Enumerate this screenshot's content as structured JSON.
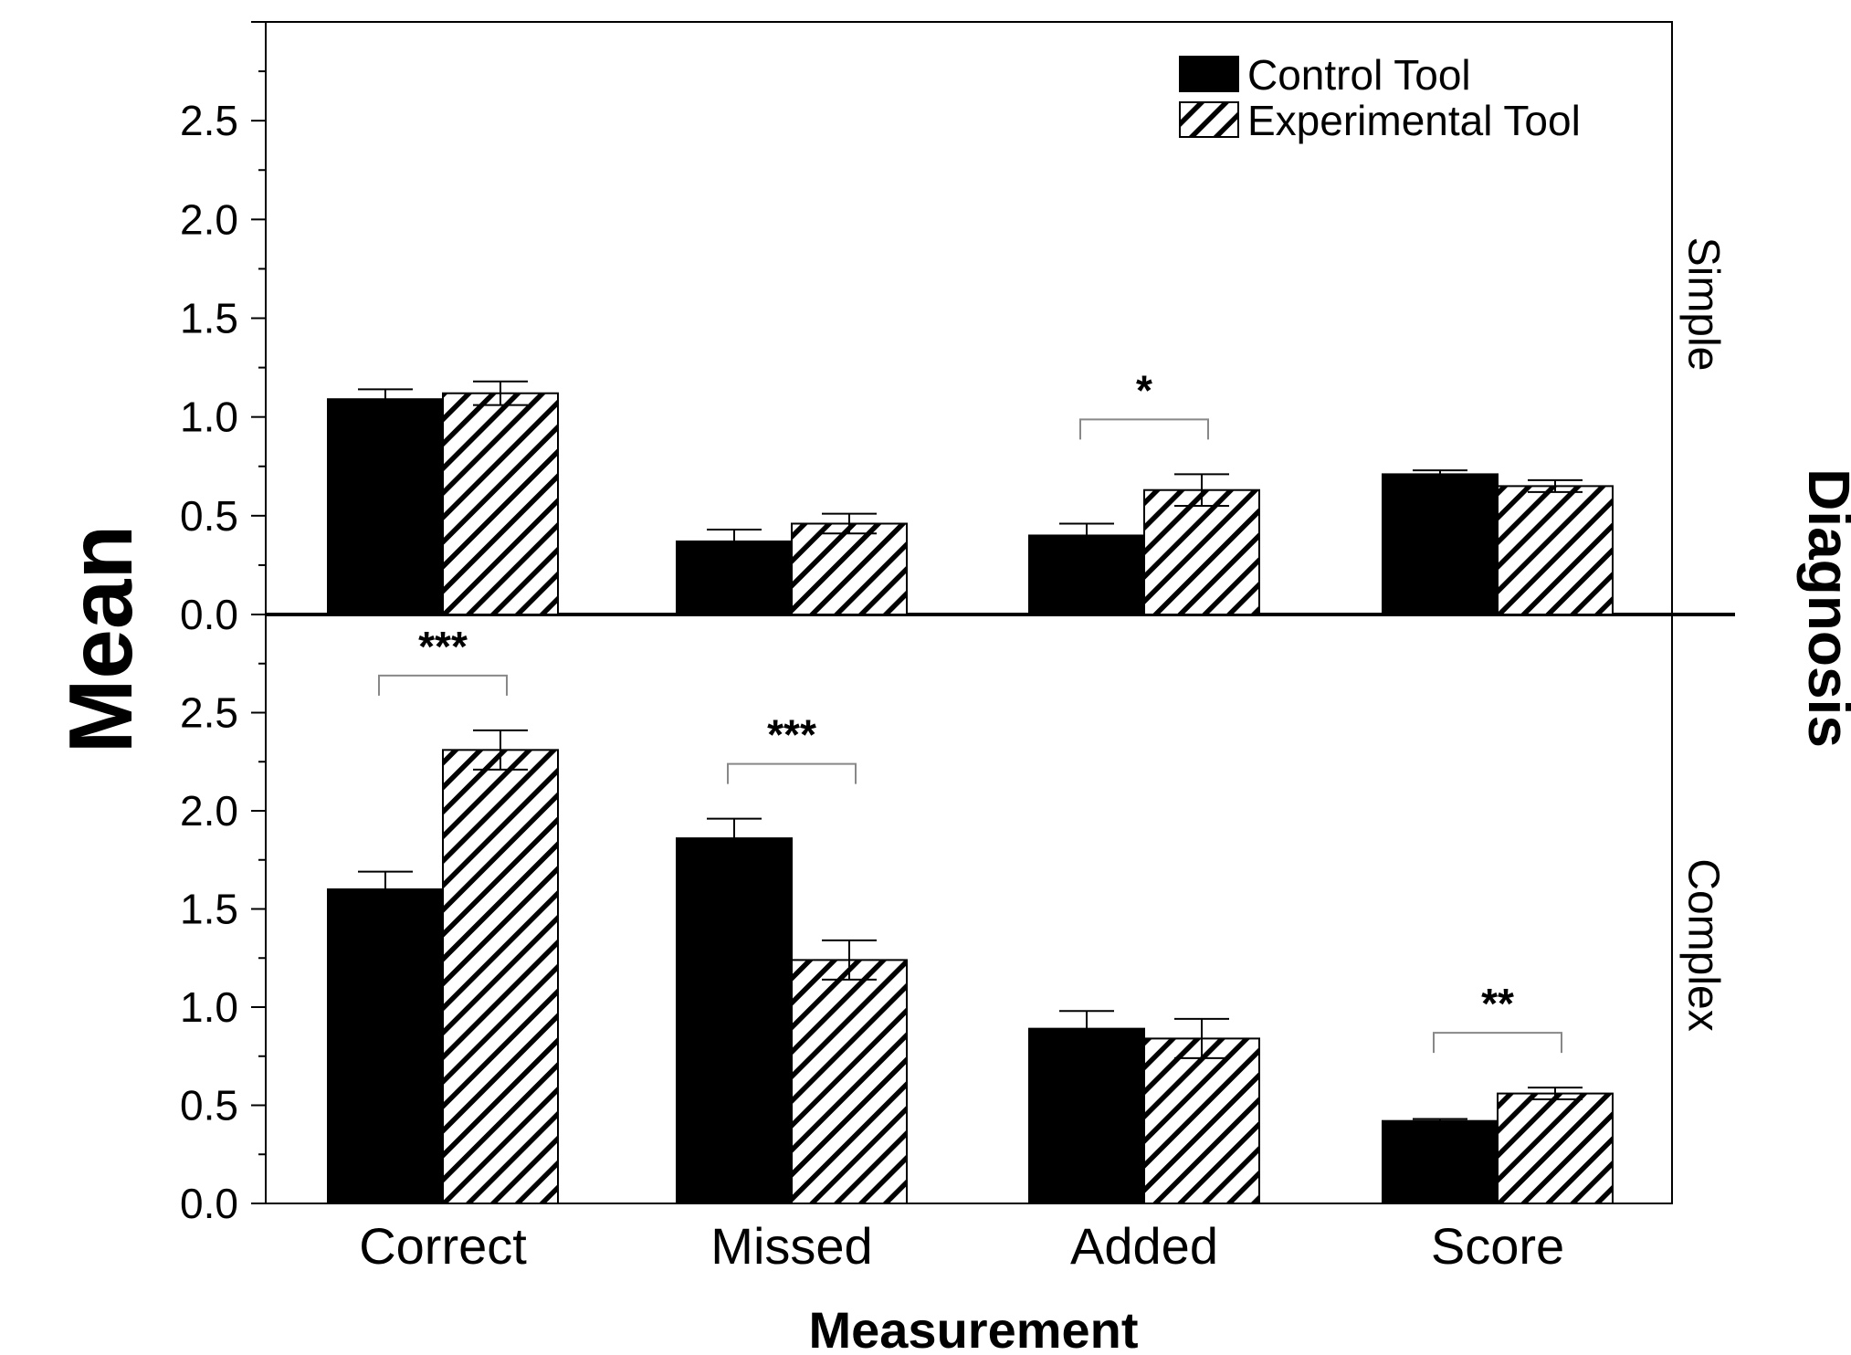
{
  "chart_data": {
    "type": "bar",
    "title": "",
    "xlabel": "Measurement",
    "ylabel": "Mean",
    "facet_title": "Diagnosis",
    "categories": [
      "Correct",
      "Missed",
      "Added",
      "Score"
    ],
    "ylim": [
      0,
      3.0
    ],
    "yticks": [
      "0.0",
      "0.5",
      "1.0",
      "1.5",
      "2.0",
      "2.5"
    ],
    "legend": {
      "placement": "top-right",
      "entries": [
        {
          "name": "Control Tool",
          "pattern": "solid",
          "color": "#000000"
        },
        {
          "name": "Experimental Tool",
          "pattern": "hatched",
          "color": "#000000"
        }
      ]
    },
    "panels": [
      {
        "name": "Simple",
        "series": [
          {
            "name": "Control Tool",
            "values": [
              1.09,
              0.37,
              0.4,
              0.71
            ],
            "errors": [
              0.05,
              0.06,
              0.06,
              0.02
            ]
          },
          {
            "name": "Experimental Tool",
            "values": [
              1.12,
              0.46,
              0.63,
              0.65
            ],
            "errors": [
              0.06,
              0.05,
              0.08,
              0.03
            ]
          }
        ],
        "significance": [
          {
            "category": "Added",
            "label": "*"
          }
        ]
      },
      {
        "name": "Complex",
        "series": [
          {
            "name": "Control Tool",
            "values": [
              1.6,
              1.86,
              0.89,
              0.42
            ],
            "errors": [
              0.09,
              0.1,
              0.09,
              0.01
            ]
          },
          {
            "name": "Experimental Tool",
            "values": [
              2.31,
              1.24,
              0.84,
              0.56
            ],
            "errors": [
              0.1,
              0.1,
              0.1,
              0.03
            ]
          }
        ],
        "significance": [
          {
            "category": "Correct",
            "label": "***"
          },
          {
            "category": "Missed",
            "label": "***"
          },
          {
            "category": "Score",
            "label": "**"
          }
        ]
      }
    ]
  }
}
